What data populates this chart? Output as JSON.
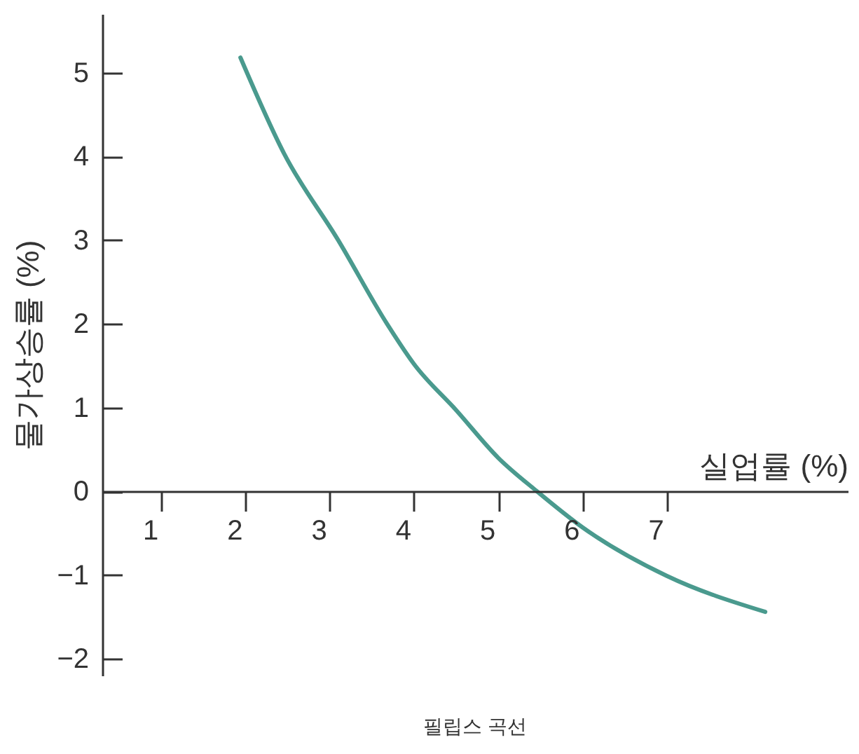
{
  "chart_data": {
    "type": "line",
    "title": "필립스 곡선",
    "xlabel": "실업률 (%)",
    "ylabel": "물가상승률 (%)",
    "x": [
      1.94,
      2.46,
      3.1,
      3.68,
      4.0,
      4.5,
      5.0,
      5.46,
      6.0,
      7.0,
      8.17
    ],
    "series": [
      {
        "color": "#4a9a8e",
        "values": [
          5.18,
          4.03,
          3.0,
          2.0,
          1.52,
          0.97,
          0.4,
          0,
          -0.43,
          -1.01,
          -1.44
        ]
      }
    ],
    "xlim": [
      0.3,
      9.15
    ],
    "ylim": [
      -2.2,
      5.7
    ],
    "xticks": [
      1,
      2,
      3,
      4,
      5,
      6,
      7
    ],
    "yticks": [
      -2,
      -1,
      0,
      1,
      2,
      3,
      4,
      5
    ],
    "grid": false,
    "marker": "none",
    "line_style": "solid"
  }
}
